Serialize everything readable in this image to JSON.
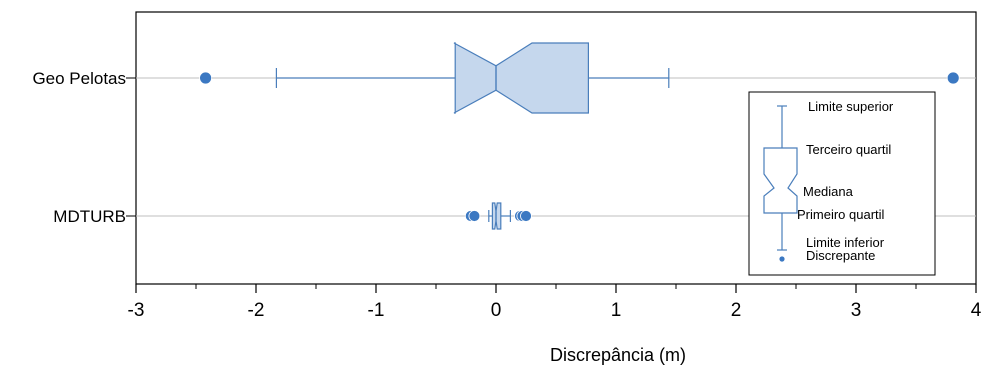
{
  "chart_data": {
    "type": "boxplot",
    "orientation": "horizontal",
    "xlabel": "Discrepância (m)",
    "xlim": [
      -3,
      4
    ],
    "xticks": [
      "-3",
      "-2",
      "-1",
      "0",
      "1",
      "2",
      "3",
      "4"
    ],
    "grid": "horizontal lines at each category",
    "box_color": "#c5d7ed",
    "line_color": "#4a7ebb",
    "point_color": "#3b78c2",
    "categories": [
      "Geo Pelotas",
      "MDTURB"
    ],
    "boxes": [
      {
        "label": "Geo Pelotas",
        "whisker_low": -1.83,
        "q1": -0.34,
        "notch_low": -0.35,
        "median": 0.0,
        "notch_high": 0.3,
        "q3": 0.77,
        "whisker_high": 1.44,
        "outliers": [
          -2.42,
          3.81
        ]
      },
      {
        "label": "MDTURB",
        "whisker_low": -0.06,
        "q1": -0.03,
        "notch_low": -0.01,
        "median": 0.0,
        "notch_high": 0.01,
        "q3": 0.04,
        "whisker_high": 0.12,
        "outliers": [
          -0.21,
          -0.18,
          0.2,
          0.22,
          0.25
        ]
      }
    ],
    "legend": {
      "placement": "right",
      "items": [
        "Limite superior",
        "Terceiro quartil",
        "Mediana",
        "Primeiro quartil",
        "Limite inferior",
        "Discrepante"
      ]
    }
  }
}
